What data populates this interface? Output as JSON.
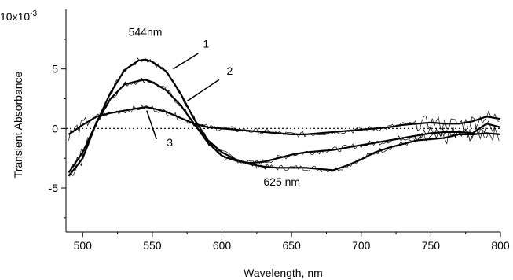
{
  "chart_data": {
    "type": "line",
    "title": "",
    "xlabel": "Wavelength, nm",
    "ylabel": "Transient Absorbance",
    "y_multiplier_label": "10x10",
    "y_multiplier_exp": "-3",
    "xlim": [
      488,
      800
    ],
    "ylim": [
      -8.7,
      10
    ],
    "x_ticks": [
      500,
      550,
      600,
      650,
      700,
      750,
      800
    ],
    "x_tick_labels": [
      "500",
      "550",
      "600",
      "650",
      "700",
      "750",
      "800"
    ],
    "y_ticks": [
      -5,
      0,
      5
    ],
    "y_tick_labels": [
      "-5",
      "0",
      "5"
    ],
    "zero_line": "dotted",
    "grid": false,
    "legend": "none",
    "series": [
      {
        "label": "1",
        "x": [
          490,
          500,
          510,
          520,
          530,
          540,
          545,
          550,
          560,
          570,
          580,
          590,
          600,
          610,
          620,
          630,
          640,
          650,
          660,
          670,
          680,
          690,
          700,
          710,
          720,
          730,
          740,
          750,
          760,
          770,
          780,
          790,
          800
        ],
        "y": [
          -4.0,
          -2.5,
          0.5,
          3.0,
          4.9,
          5.7,
          5.8,
          5.6,
          4.8,
          3.0,
          0.8,
          -1.0,
          -2.0,
          -2.6,
          -3.0,
          -3.2,
          -3.3,
          -3.3,
          -3.3,
          -3.4,
          -3.5,
          -3.1,
          -2.6,
          -2.0,
          -1.6,
          -1.3,
          -1.0,
          -0.9,
          -0.8,
          -0.5,
          -0.5,
          -0.4,
          -0.5
        ]
      },
      {
        "label": "2",
        "x": [
          490,
          500,
          510,
          520,
          530,
          540,
          545,
          550,
          560,
          570,
          580,
          590,
          600,
          610,
          620,
          630,
          640,
          650,
          660,
          670,
          680,
          690,
          700,
          710,
          720,
          730,
          740,
          750,
          760,
          770,
          780,
          790,
          800
        ],
        "y": [
          -3.7,
          -2.0,
          0.5,
          2.5,
          3.7,
          4.0,
          4.1,
          3.9,
          3.2,
          2.0,
          0.4,
          -1.2,
          -2.3,
          -2.7,
          -2.9,
          -2.8,
          -2.5,
          -2.2,
          -2.0,
          -1.9,
          -1.8,
          -1.6,
          -1.4,
          -1.2,
          -1.0,
          -0.8,
          -0.6,
          -0.4,
          -0.3,
          -0.3,
          -0.4,
          0.4,
          0.1
        ]
      },
      {
        "label": "3",
        "x": [
          490,
          500,
          510,
          520,
          530,
          540,
          545,
          550,
          560,
          570,
          580,
          590,
          600,
          610,
          620,
          630,
          640,
          650,
          660,
          670,
          680,
          690,
          700,
          710,
          720,
          730,
          740,
          750,
          760,
          770,
          780,
          790,
          800
        ],
        "y": [
          -0.5,
          0.3,
          1.0,
          1.3,
          1.5,
          1.7,
          1.8,
          1.7,
          1.4,
          0.9,
          0.4,
          0.1,
          0.0,
          -0.1,
          -0.2,
          -0.3,
          -0.4,
          -0.5,
          -0.5,
          -0.4,
          -0.3,
          -0.2,
          -0.1,
          0.0,
          0.1,
          0.3,
          0.4,
          0.5,
          0.4,
          0.4,
          0.6,
          1.0,
          0.8
        ]
      }
    ],
    "annotations": [
      {
        "text": "544nm",
        "x": 545,
        "y": 7.8
      },
      {
        "text": "625 nm",
        "x": 643,
        "y": -4.8
      },
      {
        "text": "1",
        "x": 583,
        "y": 6.8,
        "line_from": [
          583,
          6.3
        ],
        "line_to": [
          565,
          5.0
        ]
      },
      {
        "text": "2",
        "x": 600,
        "y": 4.5,
        "line_from": [
          598,
          4.1
        ],
        "line_to": [
          575,
          2.3
        ]
      },
      {
        "text": "3",
        "x": 557,
        "y": -1.5,
        "line_from": [
          553,
          -0.9
        ],
        "line_to": [
          546,
          1.5
        ]
      }
    ]
  }
}
